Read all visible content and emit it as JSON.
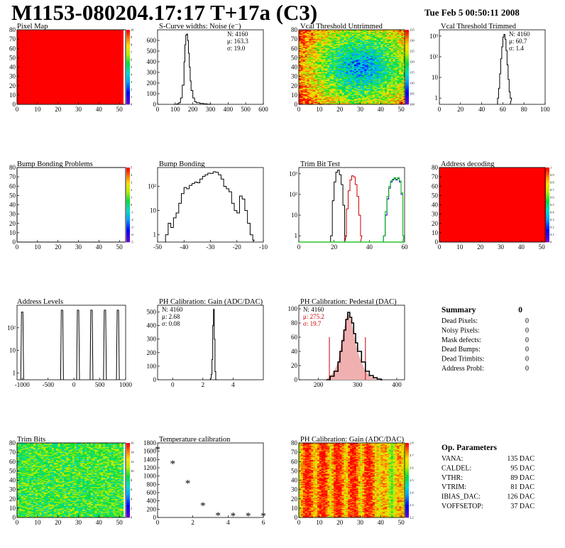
{
  "header": {
    "title": "M1153-080204.17:17 T+17a (C3)",
    "date": "Tue Feb  5 00:50:11 2008"
  },
  "colors": {
    "map_red": "#ff0000",
    "gain_line": "#cc0000",
    "trim_green": "#00bb00",
    "trim_blue": "#0000cc"
  },
  "chart_data": [
    {
      "id": "pixel-map",
      "type": "heatmap",
      "title": "Pixel Map",
      "xlim": [
        0,
        52
      ],
      "ylim": [
        0,
        80
      ],
      "xticks": [
        "0",
        "10",
        "20",
        "30",
        "40",
        "50"
      ],
      "yticks": [
        "0",
        "10",
        "20",
        "30",
        "40",
        "50",
        "60",
        "70",
        "80"
      ],
      "zlim": [
        0,
        10
      ],
      "zticks": [
        "0",
        "1",
        "2",
        "3",
        "4",
        "5",
        "6",
        "7",
        "8",
        "9",
        "10"
      ],
      "fill": "uniform",
      "value": 10
    },
    {
      "id": "scurve-noise",
      "type": "line",
      "title": "S-Curve widths: Noise (e⁻)",
      "xlim": [
        0,
        600
      ],
      "ylim": [
        0,
        700
      ],
      "xticks": [
        "0",
        "100",
        "200",
        "300",
        "400",
        "500",
        "600"
      ],
      "yticks": [
        "0",
        "100",
        "200",
        "300",
        "400",
        "500",
        "600"
      ],
      "stats": [
        "N: 4160",
        "μ: 163.3",
        "σ: 19.0"
      ],
      "x": [
        90,
        110,
        120,
        130,
        140,
        150,
        155,
        160,
        165,
        170,
        175,
        180,
        185,
        190,
        200,
        210,
        220,
        240,
        260,
        280,
        300
      ],
      "values": [
        0,
        5,
        15,
        60,
        180,
        400,
        560,
        650,
        660,
        600,
        480,
        350,
        220,
        130,
        60,
        25,
        15,
        8,
        5,
        2,
        0
      ]
    },
    {
      "id": "vcal-untrimmed",
      "type": "heatmap",
      "title": "Vcal Threshold Untrimmed",
      "xlim": [
        0,
        52
      ],
      "ylim": [
        0,
        80
      ],
      "xticks": [
        "0",
        "10",
        "20",
        "30",
        "40",
        "50"
      ],
      "yticks": [
        "0",
        "10",
        "20",
        "30",
        "40",
        "50",
        "60",
        "70",
        "80"
      ],
      "zlim": [
        100,
        135
      ],
      "zticks": [
        "100",
        "105",
        "110",
        "115",
        "120",
        "125",
        "130",
        "135"
      ],
      "fill": "center-low"
    },
    {
      "id": "vcal-trimmed",
      "type": "line",
      "title": "Vcal Threshold Trimmed",
      "xlim": [
        0,
        100
      ],
      "ylim": [
        0.5,
        2000
      ],
      "log": true,
      "xticks": [
        "0",
        "20",
        "40",
        "60",
        "80",
        "100"
      ],
      "yticks": [
        "1",
        "10",
        "10²",
        "10³"
      ],
      "stats": [
        "N: 4160",
        "μ: 60.7",
        "σ:  1.4"
      ],
      "x": [
        55,
        56,
        57,
        58,
        59,
        60,
        61,
        62,
        63,
        64,
        65,
        66,
        67
      ],
      "values": [
        1,
        3,
        15,
        80,
        300,
        900,
        1200,
        700,
        200,
        40,
        8,
        2,
        1
      ]
    },
    {
      "id": "bump-problems",
      "type": "heatmap",
      "title": "Bump Bonding Problems",
      "xlim": [
        0,
        52
      ],
      "ylim": [
        0,
        80
      ],
      "xticks": [
        "0",
        "10",
        "20",
        "30",
        "40",
        "50"
      ],
      "yticks": [
        "0",
        "10",
        "20",
        "30",
        "40",
        "50",
        "60",
        "70",
        "80"
      ],
      "zlim": [
        -5,
        5
      ],
      "zticks": [
        "-5",
        "-4",
        "-3",
        "-2",
        "-1",
        "0",
        "1",
        "2",
        "3",
        "4",
        "5"
      ],
      "fill": "empty"
    },
    {
      "id": "bump-bonding",
      "type": "line",
      "title": "Bump Bonding",
      "xlim": [
        -50,
        -10
      ],
      "ylim": [
        0.5,
        600
      ],
      "log": true,
      "xticks": [
        "-50",
        "-40",
        "-30",
        "-20",
        "-10"
      ],
      "yticks": [
        "1",
        "10",
        "10²"
      ],
      "x": [
        -47,
        -46,
        -45,
        -44,
        -43,
        -42,
        -41,
        -40,
        -39,
        -38,
        -37,
        -36,
        -35,
        -34,
        -33,
        -32,
        -31,
        -30,
        -29,
        -28,
        -27,
        -26,
        -25,
        -24,
        -23,
        -22,
        -21,
        -20,
        -19,
        -18,
        -17,
        -16,
        -15,
        -14
      ],
      "values": [
        1,
        3,
        2,
        5,
        8,
        20,
        50,
        90,
        80,
        110,
        130,
        150,
        140,
        200,
        260,
        300,
        350,
        340,
        400,
        380,
        300,
        200,
        100,
        80,
        60,
        20,
        10,
        8,
        40,
        30,
        10,
        3,
        1,
        0.6
      ]
    },
    {
      "id": "trim-bit-test",
      "type": "line",
      "title": "Trim Bit Test",
      "xlim": [
        0,
        60
      ],
      "ylim": [
        0.5,
        2000
      ],
      "log": true,
      "xticks": [
        "0",
        "20",
        "40",
        "60"
      ],
      "yticks": [
        "1",
        "10",
        "10²",
        "10³"
      ],
      "series": [
        {
          "color": "#000000",
          "x": [
            18,
            19,
            20,
            21,
            22,
            23,
            24,
            25,
            26
          ],
          "values": [
            1,
            50,
            400,
            1200,
            1500,
            900,
            300,
            30,
            1
          ]
        },
        {
          "color": "#cc0000",
          "x": [
            26,
            27,
            28,
            29,
            30,
            31,
            32,
            33,
            34,
            35
          ],
          "values": [
            1,
            20,
            150,
            500,
            800,
            700,
            300,
            80,
            10,
            1
          ]
        },
        {
          "color": "#0000cc",
          "x": [
            48,
            49,
            50,
            51,
            52,
            53,
            54,
            55,
            56,
            57,
            58,
            59
          ],
          "values": [
            1,
            10,
            60,
            200,
            400,
            500,
            600,
            500,
            600,
            400,
            100,
            1
          ]
        },
        {
          "color": "#00bb00",
          "x": [
            48,
            49,
            50,
            51,
            52,
            53,
            54,
            55,
            56,
            57,
            58,
            59
          ],
          "values": [
            1,
            15,
            80,
            250,
            450,
            550,
            650,
            550,
            650,
            450,
            120,
            1
          ]
        }
      ]
    },
    {
      "id": "address-decoding",
      "type": "heatmap",
      "title": "Address decoding",
      "xlim": [
        0,
        52
      ],
      "ylim": [
        0,
        80
      ],
      "xticks": [
        "0",
        "10",
        "20",
        "30",
        "40",
        "50"
      ],
      "yticks": [
        "0",
        "10",
        "20",
        "30",
        "40",
        "50",
        "60",
        "70",
        "80"
      ],
      "zlim": [
        0,
        1
      ],
      "zticks": [
        "0",
        "0.1",
        "0.2",
        "0.3",
        "0.4",
        "0.5",
        "0.6",
        "0.7",
        "0.8",
        "0.9",
        "1"
      ],
      "fill": "uniform",
      "value": 1
    },
    {
      "id": "address-levels",
      "type": "spikes",
      "title": "Address Levels",
      "xlim": [
        -1100,
        1000
      ],
      "ylim": [
        0.5,
        1000
      ],
      "log": true,
      "xticks": [
        "-1000",
        "-500",
        "0",
        "500",
        "1000"
      ],
      "yticks": [
        "1",
        "10",
        "10²"
      ],
      "x": [
        -1000,
        -230,
        80,
        340,
        600,
        850
      ],
      "values": [
        500,
        600,
        600,
        600,
        600,
        600
      ]
    },
    {
      "id": "ph-gain",
      "type": "line",
      "title": "PH Calibration: Gain (ADC/DAC)",
      "xlim": [
        -1,
        6
      ],
      "ylim": [
        0,
        550
      ],
      "xticks": [
        "0",
        "2",
        "4"
      ],
      "yticks": [
        "0",
        "100",
        "200",
        "300",
        "400",
        "500"
      ],
      "stats": [
        "N: 4160",
        " μ: 2.68",
        " σ: 0.08"
      ],
      "x": [
        2.45,
        2.5,
        2.55,
        2.6,
        2.65,
        2.7,
        2.75,
        2.8,
        2.85
      ],
      "values": [
        0,
        10,
        40,
        150,
        400,
        520,
        300,
        60,
        0
      ]
    },
    {
      "id": "ph-pedestal",
      "type": "line",
      "title": "PH Calibration: Pedestal (DAC)",
      "xlim": [
        150,
        420
      ],
      "ylim": [
        0,
        105
      ],
      "xticks": [
        "200",
        "300",
        "400"
      ],
      "yticks": [
        "0",
        "20",
        "40",
        "60",
        "80",
        "100"
      ],
      "stats": [
        "N: 4160",
        "μ: 275.2",
        "σ: 19.7"
      ],
      "x": [
        220,
        230,
        240,
        250,
        255,
        260,
        265,
        270,
        275,
        280,
        285,
        290,
        295,
        300,
        310,
        320,
        330,
        340,
        350,
        360
      ],
      "values": [
        0,
        5,
        12,
        25,
        40,
        55,
        70,
        85,
        95,
        88,
        80,
        65,
        52,
        40,
        25,
        12,
        6,
        3,
        1,
        0
      ],
      "cut_lines": [
        228,
        320
      ]
    },
    {
      "id": "summary",
      "type": "table",
      "title": "Summary",
      "total": "0",
      "rows": [
        {
          "label": "Dead Pixels:",
          "value": "0"
        },
        {
          "label": "Noisy Pixels:",
          "value": "0"
        },
        {
          "label": "Mask defects:",
          "value": "0"
        },
        {
          "label": "Dead Bumps:",
          "value": "0"
        },
        {
          "label": "Dead Trimbits:",
          "value": "0"
        },
        {
          "label": "Address Probl:",
          "value": "0"
        }
      ]
    },
    {
      "id": "trim-bits",
      "type": "heatmap",
      "title": "Trim Bits",
      "xlim": [
        0,
        52
      ],
      "ylim": [
        0,
        80
      ],
      "xticks": [
        "0",
        "10",
        "20",
        "30",
        "40",
        "50"
      ],
      "yticks": [
        "0",
        "10",
        "20",
        "30",
        "40",
        "50",
        "60",
        "70",
        "80"
      ],
      "zlim": [
        0,
        16
      ],
      "zticks": [
        "0",
        "2",
        "4",
        "6",
        "8",
        "10",
        "12",
        "14",
        "16"
      ],
      "fill": "mid-green"
    },
    {
      "id": "temp-cal",
      "type": "scatter",
      "title": "Temperature calibration",
      "xlim": [
        0,
        7
      ],
      "ylim": [
        0,
        1800
      ],
      "xticks": [
        "0",
        "2",
        "4",
        "6"
      ],
      "yticks": [
        "0",
        "200",
        "400",
        "600",
        "800",
        "1000",
        "1200",
        "1400",
        "1600",
        "1800"
      ],
      "x": [
        0,
        1,
        2,
        3,
        4,
        5,
        6,
        7
      ],
      "values": [
        1660,
        1320,
        850,
        310,
        70,
        60,
        60,
        60
      ]
    },
    {
      "id": "ph-gain-map",
      "type": "heatmap",
      "title": "PH Calibration: Gain (ADC/DAC)",
      "xlim": [
        0,
        52
      ],
      "ylim": [
        0,
        80
      ],
      "xticks": [
        "0",
        "10",
        "20",
        "30",
        "40",
        "50"
      ],
      "yticks": [
        "0",
        "10",
        "20",
        "30",
        "40",
        "50",
        "60",
        "70",
        "80"
      ],
      "zlim": [
        2.2,
        2.8
      ],
      "zticks": [
        "2.2",
        "2.3",
        "2.4",
        "2.5",
        "2.6",
        "2.7",
        "2.8"
      ],
      "fill": "gain-columns"
    },
    {
      "id": "op-params",
      "type": "table",
      "title": "Op. Parameters",
      "rows": [
        {
          "label": "VANA:",
          "value": "135 DAC"
        },
        {
          "label": "CALDEL:",
          "value": "95 DAC"
        },
        {
          "label": "VTHR:",
          "value": "89 DAC"
        },
        {
          "label": "VTRIM:",
          "value": "81 DAC"
        },
        {
          "label": "IBIAS_DAC:",
          "value": "126 DAC"
        },
        {
          "label": "VOFFSETOP:",
          "value": "37 DAC"
        }
      ]
    }
  ]
}
